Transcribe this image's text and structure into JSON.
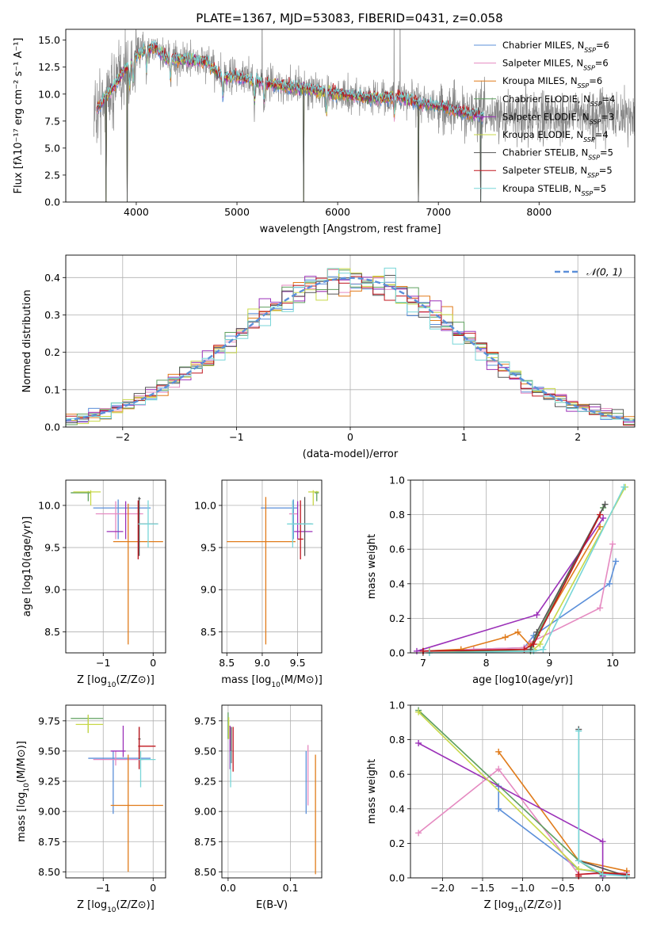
{
  "title": "PLATE=1367, MJD=53083, FIBERID=0431, z=0.058",
  "colors": [
    "#5b8fd9",
    "#e58ac1",
    "#e07b1a",
    "#5fa05f",
    "#9b30b8",
    "#c8d848",
    "#555555",
    "#c0161e",
    "#78d6d8"
  ],
  "models": [
    {
      "label": "Chabrier MILES, N",
      "sub": "SSP",
      "n": "=6"
    },
    {
      "label": "Salpeter MILES, N",
      "sub": "SSP",
      "n": "=6"
    },
    {
      "label": "Kroupa MILES, N",
      "sub": "SSP",
      "n": "=6"
    },
    {
      "label": "Chabrier ELODIE, N",
      "sub": "SSP",
      "n": "=4"
    },
    {
      "label": "Salpeter ELODIE, N",
      "sub": "SSP",
      "n": "=3"
    },
    {
      "label": "Kroupa ELODIE, N",
      "sub": "SSP",
      "n": "=4"
    },
    {
      "label": "Chabrier STELIB, N",
      "sub": "SSP",
      "n": "=5"
    },
    {
      "label": "Salpeter STELIB, N",
      "sub": "SSP",
      "n": "=5"
    },
    {
      "label": "Kroupa STELIB, N",
      "sub": "SSP",
      "n": "=5"
    }
  ],
  "chart_data": [
    {
      "id": "spectrum",
      "type": "line",
      "xlabel": "wavelength [Angstrom, rest frame]",
      "ylabel": "Flux [fλ10⁻¹⁷ erg cm⁻² s⁻¹ A⁻¹]",
      "xlim": [
        3300,
        8950
      ],
      "ylim": [
        0,
        16
      ],
      "xticks": [
        4000,
        5000,
        6000,
        7000,
        8000
      ],
      "yticks": [
        0.0,
        2.5,
        5.0,
        7.5,
        10.0,
        12.5,
        15.0
      ],
      "observed_color": "#888888",
      "continuum": {
        "x": [
          3600,
          3700,
          3800,
          3900,
          4000,
          4100,
          4200,
          4300,
          4500,
          4700,
          4850,
          5000,
          5200,
          5400,
          5600,
          5800,
          6000,
          6200,
          6400,
          6600,
          6800,
          7000,
          7200,
          7400
        ],
        "y": [
          8.5,
          9.8,
          11.0,
          12.4,
          13.5,
          14.2,
          14.3,
          13.3,
          13.2,
          13.0,
          11.6,
          11.6,
          11.2,
          10.8,
          10.6,
          10.3,
          10.0,
          9.8,
          9.6,
          9.8,
          9.2,
          8.9,
          8.4,
          8.0
        ]
      },
      "absorption_lines": [
        3934,
        3969,
        4102,
        4340,
        4861,
        5175,
        5270,
        5890,
        6563
      ],
      "dips": [
        3700,
        3910,
        5660,
        6800,
        7420
      ]
    },
    {
      "id": "residuals",
      "type": "histogram",
      "xlabel": "(data-model)/error",
      "ylabel": "Normed distribution",
      "xlim": [
        -2.5,
        2.5
      ],
      "ylim": [
        0,
        0.46
      ],
      "xticks": [
        -2,
        -1,
        0,
        1,
        2
      ],
      "yticks": [
        0.0,
        0.1,
        0.2,
        0.3,
        0.4
      ],
      "bins": 50,
      "reference": {
        "name": "𝒩(0, 1)",
        "mean": 0,
        "sd": 1,
        "color": "#5b8fd9"
      }
    },
    {
      "id": "age-vs-z",
      "type": "errorbar",
      "xlabel_pre": "Z [log",
      "xlabel_sub": "10",
      "xlabel_post": "(Z/Z⊙)]",
      "ylabel": "age  [log10(age/yr)]",
      "xlim": [
        -1.75,
        0.25
      ],
      "ylim": [
        8.25,
        10.3
      ],
      "xticks": [
        -1,
        0
      ],
      "yticks": [
        8.5,
        9.0,
        9.5,
        10.0
      ],
      "points": [
        {
          "x": -0.7,
          "xlo": -1.2,
          "xhi": -0.05,
          "y": 9.97,
          "ylo": 9.6,
          "yhi": 10.07
        },
        {
          "x": -0.75,
          "xlo": -1.15,
          "xhi": -0.2,
          "y": 9.9,
          "ylo": 9.6,
          "yhi": 10.05
        },
        {
          "x": -0.5,
          "xlo": -0.8,
          "xhi": 0.2,
          "y": 9.57,
          "ylo": 8.35,
          "yhi": 10.02
        },
        {
          "x": -1.3,
          "xlo": -1.65,
          "xhi": -1.25,
          "y": 10.15,
          "ylo": 10.05,
          "yhi": 10.17
        },
        {
          "x": -0.55,
          "xlo": -0.93,
          "xhi": -0.6,
          "y": 9.69,
          "ylo": 9.6,
          "yhi": 10.05
        },
        {
          "x": -1.25,
          "xlo": -1.6,
          "xhi": -1.05,
          "y": 10.16,
          "ylo": 10.0,
          "yhi": 10.18
        },
        {
          "x": -0.28,
          "xlo": -0.3,
          "xhi": -0.25,
          "y": 10.08,
          "ylo": 9.4,
          "yhi": 10.1
        },
        {
          "x": -0.3,
          "xlo": -0.3,
          "xhi": 0.1,
          "y": 9.78,
          "ylo": 9.36,
          "yhi": 10.06
        },
        {
          "x": -0.1,
          "xlo": -0.3,
          "xhi": 0.1,
          "y": 9.78,
          "ylo": 9.5,
          "yhi": 10.06
        }
      ]
    },
    {
      "id": "age-vs-mass",
      "type": "errorbar",
      "xlabel_pre": "mass [log",
      "xlabel_sub": "10",
      "xlabel_post": "(M/M⊙)]",
      "ylabel": "",
      "xlim": [
        8.43,
        9.84
      ],
      "ylim": [
        8.25,
        10.3
      ],
      "xticks": [
        8.5,
        9.0,
        9.5
      ],
      "yticks": [
        8.5,
        9.0,
        9.5,
        10.0
      ],
      "points": [
        {
          "x": 9.44,
          "xlo": 8.98,
          "xhi": 9.5,
          "y": 9.97,
          "ylo": 9.6,
          "yhi": 10.07
        },
        {
          "x": 9.43,
          "xlo": 9.38,
          "xhi": 9.5,
          "y": 9.9,
          "ylo": 9.6,
          "yhi": 10.05
        },
        {
          "x": 9.05,
          "xlo": 8.5,
          "xhi": 9.47,
          "y": 9.57,
          "ylo": 8.35,
          "yhi": 10.1
        },
        {
          "x": 9.77,
          "xlo": 9.74,
          "xhi": 9.8,
          "y": 10.15,
          "ylo": 10.05,
          "yhi": 10.17
        },
        {
          "x": 9.5,
          "xlo": 9.45,
          "xhi": 9.71,
          "y": 9.69,
          "ylo": 9.6,
          "yhi": 10.05
        },
        {
          "x": 9.72,
          "xlo": 9.65,
          "xhi": 9.8,
          "y": 10.16,
          "ylo": 10.0,
          "yhi": 10.18
        },
        {
          "x": 9.6,
          "xlo": 9.45,
          "xhi": 9.7,
          "y": 9.78,
          "ylo": 9.4,
          "yhi": 10.1
        },
        {
          "x": 9.54,
          "xlo": 9.5,
          "xhi": 9.58,
          "y": 9.6,
          "ylo": 9.36,
          "yhi": 10.06
        },
        {
          "x": 9.43,
          "xlo": 9.35,
          "xhi": 9.72,
          "y": 9.78,
          "ylo": 9.5,
          "yhi": 10.06
        }
      ]
    },
    {
      "id": "weight-vs-age",
      "type": "line",
      "xlabel": "age  [log10(age/yr)]",
      "ylabel": "mass weight",
      "xlim": [
        6.8,
        10.35
      ],
      "ylim": [
        0,
        1.0
      ],
      "xticks": [
        7,
        8,
        9,
        10
      ],
      "yticks": [
        0.0,
        0.2,
        0.4,
        0.6,
        0.8,
        1.0
      ],
      "series": [
        {
          "x": [
            7.0,
            7.8,
            8.6,
            8.75,
            9.95,
            10.05
          ],
          "y": [
            0.01,
            0.02,
            0.03,
            0.1,
            0.4,
            0.53
          ]
        },
        {
          "x": [
            7.0,
            7.8,
            8.6,
            8.7,
            9.8,
            10.0
          ],
          "y": [
            0.01,
            0.02,
            0.03,
            0.06,
            0.26,
            0.63
          ]
        },
        {
          "x": [
            7.0,
            7.6,
            8.3,
            8.5,
            8.7,
            9.8
          ],
          "y": [
            0.01,
            0.02,
            0.09,
            0.12,
            0.04,
            0.73
          ]
        },
        {
          "x": [
            7.1,
            8.7,
            8.8,
            9.85
          ],
          "y": [
            0.01,
            0.01,
            0.1,
            0.84
          ]
        },
        {
          "x": [
            6.9,
            8.8,
            9.85
          ],
          "y": [
            0.01,
            0.22,
            0.78
          ]
        },
        {
          "x": [
            7.1,
            8.75,
            8.85,
            10.2
          ],
          "y": [
            0.01,
            0.02,
            0.05,
            0.96
          ]
        },
        {
          "x": [
            7.0,
            8.7,
            8.8,
            9.88
          ],
          "y": [
            0.01,
            0.02,
            0.12,
            0.86
          ]
        },
        {
          "x": [
            7.0,
            8.6,
            8.75,
            9.8
          ],
          "y": [
            0.01,
            0.02,
            0.05,
            0.8
          ]
        },
        {
          "x": [
            7.1,
            8.75,
            8.9,
            10.18
          ],
          "y": [
            0.0,
            0.01,
            0.02,
            0.96
          ]
        }
      ]
    },
    {
      "id": "mass-vs-z",
      "type": "errorbar",
      "xlabel_pre": "Z [log",
      "xlabel_sub": "10",
      "xlabel_post": "(Z/Z⊙)]",
      "ylabel_pre": "mass [log",
      "ylabel_sub": "10",
      "ylabel_post": "(M/M⊙)]",
      "xlim": [
        -1.75,
        0.25
      ],
      "ylim": [
        8.45,
        9.88
      ],
      "xticks": [
        -1,
        0
      ],
      "yticks": [
        8.5,
        8.75,
        9.0,
        9.25,
        9.5,
        9.75
      ],
      "points": [
        {
          "x": -0.8,
          "xlo": -1.3,
          "xhi": -0.05,
          "y": 9.44,
          "ylo": 8.98,
          "yhi": 9.5
        },
        {
          "x": -0.75,
          "xlo": -1.2,
          "xhi": -0.2,
          "y": 9.43,
          "ylo": 9.38,
          "yhi": 9.5
        },
        {
          "x": -0.5,
          "xlo": -0.85,
          "xhi": 0.2,
          "y": 9.05,
          "ylo": 8.5,
          "yhi": 9.47
        },
        {
          "x": -1.3,
          "xlo": -1.65,
          "xhi": -1.0,
          "y": 9.77,
          "ylo": 9.65,
          "yhi": 9.8
        },
        {
          "x": -0.6,
          "xlo": -0.85,
          "xhi": -0.55,
          "y": 9.5,
          "ylo": 9.45,
          "yhi": 9.71
        },
        {
          "x": -1.3,
          "xlo": -1.55,
          "xhi": -1.0,
          "y": 9.72,
          "ylo": 9.65,
          "yhi": 9.8
        },
        {
          "x": -0.28,
          "xlo": -0.3,
          "xhi": -0.25,
          "y": 9.6,
          "ylo": 9.45,
          "yhi": 9.7
        },
        {
          "x": -0.28,
          "xlo": -0.3,
          "xhi": 0.05,
          "y": 9.54,
          "ylo": 9.35,
          "yhi": 9.7
        },
        {
          "x": -0.25,
          "xlo": -0.3,
          "xhi": 0.05,
          "y": 9.43,
          "ylo": 9.2,
          "yhi": 9.5
        }
      ]
    },
    {
      "id": "mass-vs-ebv",
      "type": "errorbar",
      "xlabel": "E(B-V)",
      "ylabel": "",
      "xlim": [
        -0.01,
        0.15
      ],
      "ylim": [
        8.45,
        9.88
      ],
      "xticks": [
        0.0,
        0.1
      ],
      "yticks": [
        8.5,
        8.75,
        9.0,
        9.25,
        9.5,
        9.75
      ],
      "points": [
        {
          "x": 0.125,
          "xlo": 0.125,
          "xhi": 0.125,
          "y": 9.44,
          "ylo": 8.98,
          "yhi": 9.5
        },
        {
          "x": 0.128,
          "xlo": 0.128,
          "xhi": 0.128,
          "y": 9.43,
          "ylo": 9.05,
          "yhi": 9.55
        },
        {
          "x": 0.14,
          "xlo": 0.14,
          "xhi": 0.14,
          "y": 9.05,
          "ylo": 8.48,
          "yhi": 9.47
        },
        {
          "x": 0.0,
          "xlo": 0.0,
          "xhi": 0.0,
          "y": 9.77,
          "ylo": 9.6,
          "yhi": 9.82
        },
        {
          "x": 0.003,
          "xlo": 0.003,
          "xhi": 0.003,
          "y": 9.5,
          "ylo": 9.35,
          "yhi": 9.71
        },
        {
          "x": 0.001,
          "xlo": 0.001,
          "xhi": 0.001,
          "y": 9.72,
          "ylo": 9.6,
          "yhi": 9.78
        },
        {
          "x": 0.005,
          "xlo": 0.005,
          "xhi": 0.005,
          "y": 9.6,
          "ylo": 9.4,
          "yhi": 9.7
        },
        {
          "x": 0.008,
          "xlo": 0.008,
          "xhi": 0.008,
          "y": 9.54,
          "ylo": 9.33,
          "yhi": 9.7
        },
        {
          "x": 0.004,
          "xlo": 0.004,
          "xhi": 0.004,
          "y": 9.43,
          "ylo": 9.2,
          "yhi": 9.5
        }
      ]
    },
    {
      "id": "weight-vs-z",
      "type": "line",
      "xlabel_pre": "Z [log",
      "xlabel_sub": "10",
      "xlabel_post": "(Z/Z⊙)]",
      "ylabel": "mass weight",
      "xlim": [
        -2.4,
        0.4
      ],
      "ylim": [
        0,
        1.0
      ],
      "xticks": [
        -2.0,
        -1.5,
        -1.0,
        -0.5,
        0.0
      ],
      "yticks": [
        0.0,
        0.2,
        0.4,
        0.6,
        0.8,
        1.0
      ],
      "series": [
        {
          "x": [
            -1.3,
            -1.3,
            -0.3,
            0.3
          ],
          "y": [
            0.53,
            0.4,
            0.05,
            0.01
          ]
        },
        {
          "x": [
            -2.3,
            -1.3,
            -0.3,
            0.3
          ],
          "y": [
            0.26,
            0.63,
            0.02,
            0.03
          ]
        },
        {
          "x": [
            -1.3,
            -0.3,
            0.3
          ],
          "y": [
            0.73,
            0.1,
            0.04
          ]
        },
        {
          "x": [
            -2.3,
            -0.3,
            0.0
          ],
          "y": [
            0.97,
            0.1,
            0.01
          ]
        },
        {
          "x": [
            -2.3,
            0.0,
            0.0
          ],
          "y": [
            0.78,
            0.21,
            0.01
          ]
        },
        {
          "x": [
            -2.3,
            -0.3,
            0.3
          ],
          "y": [
            0.96,
            0.05,
            0.02
          ]
        },
        {
          "x": [
            -0.3,
            -0.3,
            0.3
          ],
          "y": [
            0.86,
            0.1,
            0.01
          ]
        },
        {
          "x": [
            -0.3,
            -0.3,
            0.0,
            0.3
          ],
          "y": [
            0.01,
            0.02,
            0.03,
            0.02
          ]
        },
        {
          "x": [
            -0.3,
            -0.3,
            0.0,
            0.3
          ],
          "y": [
            0.85,
            0.1,
            0.02,
            0.01
          ]
        }
      ]
    }
  ]
}
